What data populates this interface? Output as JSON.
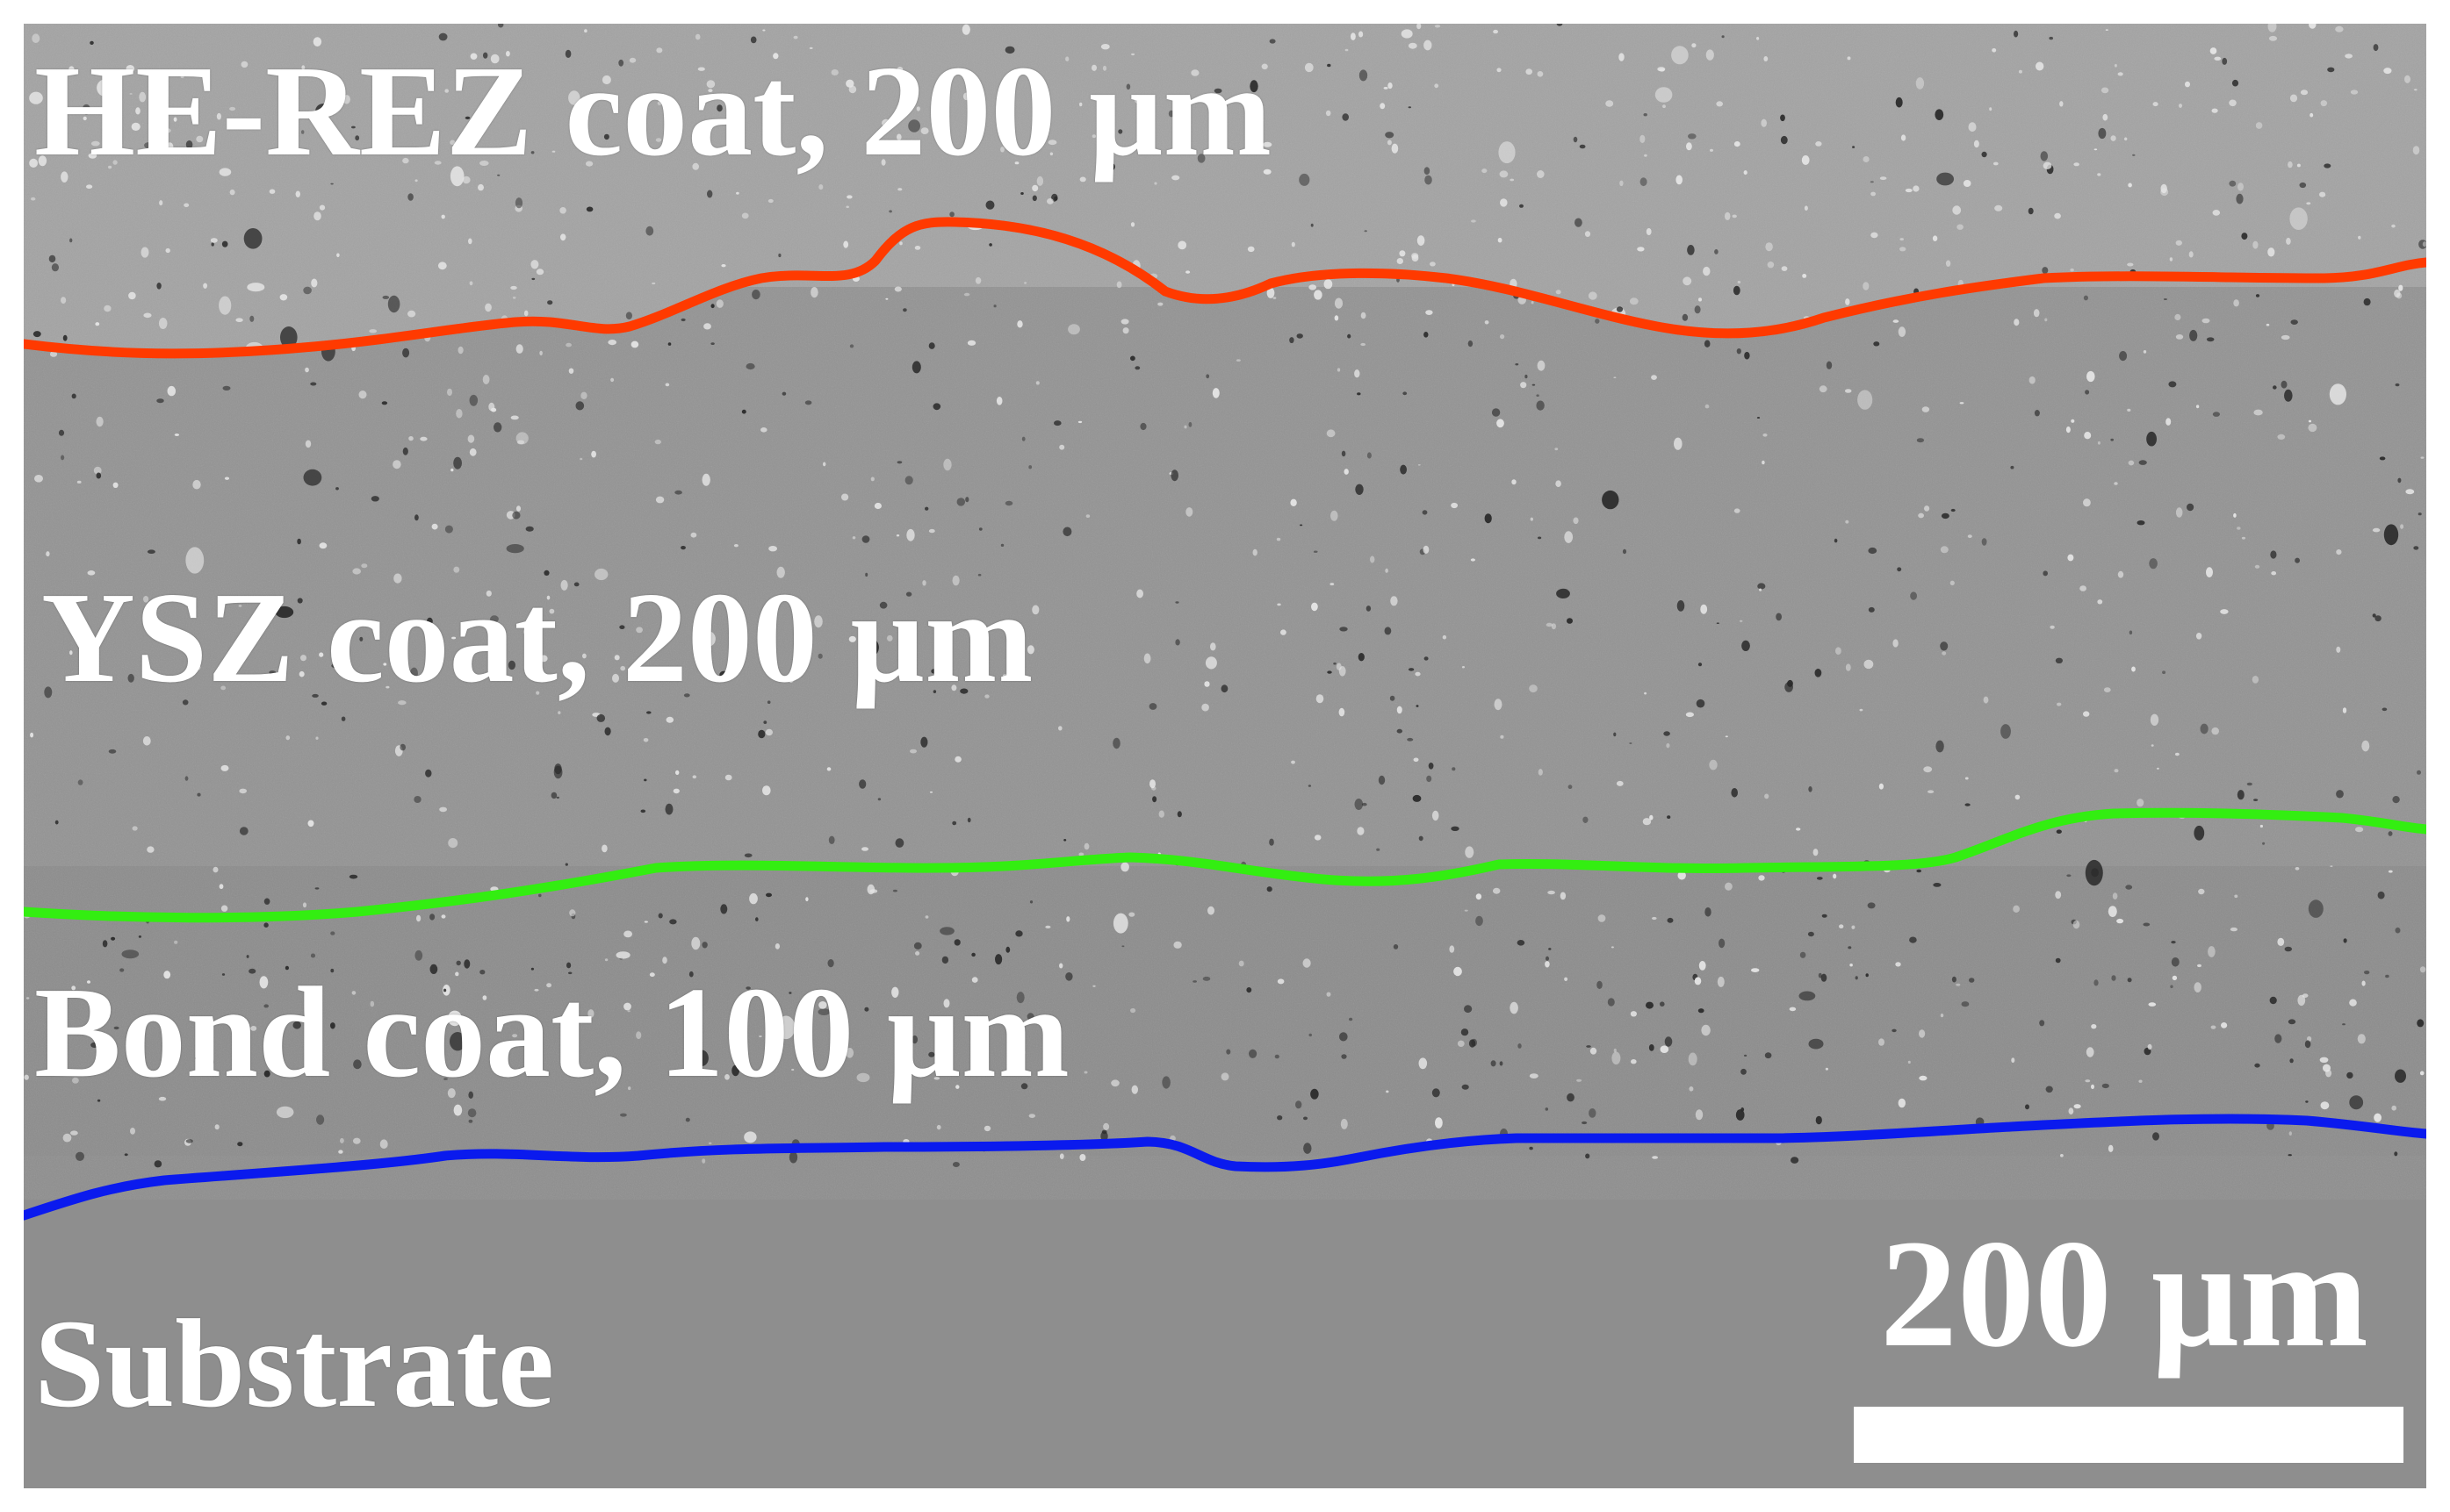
{
  "layers": {
    "top_label": "HE-REZ coat, 200 µm",
    "ysz_label": "YSZ coat, 200 µm",
    "bond_label": "Bond coat, 100 µm",
    "substrate_label": "Substrate"
  },
  "scale_bar": {
    "label": "200 µm"
  },
  "interfaces": [
    {
      "name": "HE-REZ / YSZ interface",
      "color": "#ff3a00"
    },
    {
      "name": "YSZ / bond coat interface",
      "color": "#33ee11"
    },
    {
      "name": "bond coat / substrate interface",
      "color": "#0a1aee"
    }
  ]
}
